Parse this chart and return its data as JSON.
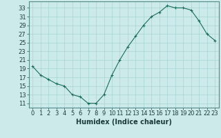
{
  "x": [
    0,
    1,
    2,
    3,
    4,
    5,
    6,
    7,
    8,
    9,
    10,
    11,
    12,
    13,
    14,
    15,
    16,
    17,
    18,
    19,
    20,
    21,
    22,
    23
  ],
  "y": [
    19.5,
    17.5,
    16.5,
    15.5,
    15,
    13,
    12.5,
    11,
    11,
    13,
    17.5,
    21,
    24,
    26.5,
    29,
    31,
    32,
    33.5,
    33,
    33,
    32.5,
    30,
    27,
    25.5
  ],
  "line_color": "#1a6b5a",
  "marker": "+",
  "marker_size": 3,
  "marker_lw": 0.8,
  "background_color": "#cceaea",
  "grid_color": "#a8d4d4",
  "xlabel": "Humidex (Indice chaleur)",
  "xlabel_fontsize": 7,
  "tick_fontsize": 6,
  "ylim": [
    10,
    34.5
  ],
  "yticks": [
    11,
    13,
    15,
    17,
    19,
    21,
    23,
    25,
    27,
    29,
    31,
    33
  ],
  "xlim": [
    -0.5,
    23.5
  ],
  "xticks": [
    0,
    1,
    2,
    3,
    4,
    5,
    6,
    7,
    8,
    9,
    10,
    11,
    12,
    13,
    14,
    15,
    16,
    17,
    18,
    19,
    20,
    21,
    22,
    23
  ]
}
